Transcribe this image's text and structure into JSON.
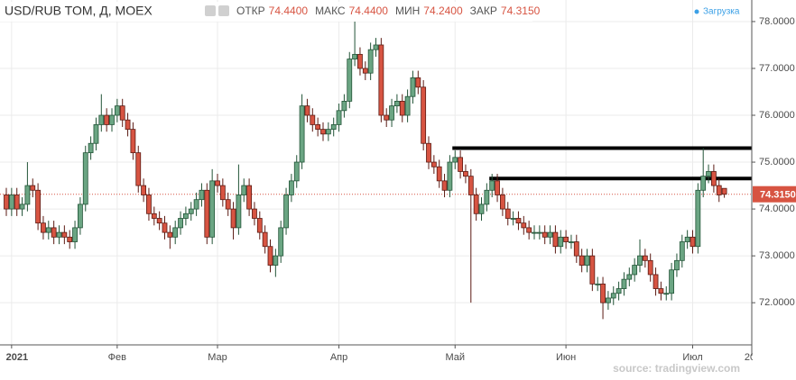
{
  "chart_data": {
    "type": "candlestick",
    "header": {
      "symbol": "USD/RUB TOM, Д, MOEX",
      "fields": [
        {
          "label": "ОТКР",
          "value": "74.4400"
        },
        {
          "label": "МАКС",
          "value": "74.4400"
        },
        {
          "label": "МИН",
          "value": "74.2400"
        },
        {
          "label": "ЗАКР",
          "value": "74.3150"
        }
      ]
    },
    "status": "Загрузка",
    "source": "source: tradingview.com",
    "categories": [
      null,
      "2021",
      null,
      null,
      null,
      null,
      null,
      null,
      null,
      null,
      null,
      null,
      null,
      null,
      null,
      null,
      null,
      null,
      null,
      null,
      null,
      "Фев",
      null,
      null,
      null,
      null,
      null,
      null,
      null,
      null,
      null,
      null,
      null,
      null,
      null,
      null,
      null,
      null,
      null,
      null,
      "Мар",
      null,
      null,
      null,
      null,
      null,
      null,
      null,
      null,
      null,
      null,
      null,
      null,
      null,
      null,
      null,
      null,
      null,
      null,
      null,
      null,
      null,
      null,
      "Апр",
      null,
      null,
      null,
      null,
      null,
      null,
      null,
      null,
      null,
      null,
      null,
      null,
      null,
      null,
      null,
      null,
      null,
      null,
      null,
      null,
      null,
      "Май",
      null,
      null,
      null,
      null,
      null,
      null,
      null,
      null,
      null,
      null,
      null,
      null,
      null,
      null,
      null,
      null,
      null,
      null,
      null,
      null,
      "Июн",
      null,
      null,
      null,
      null,
      null,
      null,
      null,
      null,
      null,
      null,
      null,
      null,
      null,
      null,
      null,
      null,
      null,
      null,
      null,
      null,
      null,
      null,
      null,
      "Июл",
      null,
      null,
      null,
      null,
      null,
      null
    ],
    "axis_cut_label": "20",
    "open": [
      74.3,
      74.0,
      74.3,
      74.0,
      74.1,
      74.5,
      74.4,
      73.7,
      73.5,
      73.6,
      73.4,
      73.5,
      73.4,
      73.3,
      73.6,
      74.1,
      75.2,
      75.4,
      75.8,
      76.0,
      75.8,
      76.0,
      76.2,
      75.9,
      75.7,
      75.2,
      74.5,
      74.3,
      73.9,
      73.8,
      73.7,
      73.5,
      73.4,
      73.6,
      73.8,
      73.9,
      74.0,
      74.2,
      74.4,
      73.4,
      74.6,
      74.5,
      74.2,
      74.0,
      73.6,
      74.3,
      74.5,
      74.0,
      73.8,
      73.5,
      73.2,
      72.8,
      73.0,
      73.6,
      74.3,
      74.6,
      75.0,
      76.2,
      76.0,
      75.8,
      75.7,
      75.6,
      75.7,
      75.8,
      76.1,
      76.3,
      77.2,
      77.3,
      77.0,
      76.9,
      77.4,
      77.5,
      76.0,
      75.9,
      76.2,
      76.3,
      76.0,
      76.4,
      76.8,
      76.6,
      75.4,
      75.0,
      74.9,
      74.6,
      74.4,
      75.0,
      75.1,
      74.8,
      74.7,
      74.3,
      73.9,
      74.1,
      74.4,
      74.6,
      74.3,
      74.0,
      73.8,
      73.8,
      73.7,
      73.6,
      73.5,
      73.5,
      73.5,
      73.4,
      73.5,
      73.2,
      73.4,
      73.3,
      73.3,
      73.0,
      72.8,
      73.0,
      72.4,
      72.4,
      72.0,
      72.1,
      72.2,
      72.3,
      72.5,
      72.6,
      72.8,
      73.0,
      72.9,
      72.6,
      72.3,
      72.2,
      72.2,
      72.7,
      72.9,
      73.3,
      73.4,
      73.2,
      74.4,
      74.7,
      74.8,
      74.5,
      74.44
    ],
    "high": [
      74.45,
      74.45,
      74.45,
      74.25,
      75.0,
      74.65,
      74.55,
      73.85,
      73.75,
      73.75,
      73.65,
      73.65,
      73.55,
      73.75,
      74.25,
      75.35,
      75.55,
      75.95,
      76.45,
      76.15,
      76.15,
      76.35,
      76.35,
      76.05,
      75.85,
      75.35,
      74.65,
      74.45,
      74.05,
      73.95,
      73.85,
      73.65,
      73.75,
      73.95,
      74.05,
      74.15,
      74.35,
      74.55,
      74.55,
      74.85,
      74.75,
      74.65,
      74.35,
      74.15,
      74.95,
      74.65,
      74.65,
      74.15,
      73.95,
      73.65,
      73.35,
      73.15,
      73.75,
      74.45,
      74.75,
      75.15,
      76.45,
      76.35,
      76.15,
      75.95,
      75.85,
      75.85,
      75.95,
      76.25,
      76.45,
      77.35,
      78.0,
      77.45,
      77.15,
      77.55,
      77.65,
      77.65,
      76.15,
      76.35,
      76.45,
      76.45,
      76.55,
      76.95,
      76.95,
      76.75,
      75.55,
      75.15,
      75.05,
      74.75,
      75.15,
      75.25,
      75.25,
      74.95,
      74.85,
      74.45,
      74.25,
      74.55,
      74.75,
      74.75,
      74.45,
      74.15,
      73.95,
      73.95,
      73.85,
      73.75,
      73.65,
      73.65,
      73.65,
      73.65,
      73.65,
      73.55,
      73.55,
      73.45,
      73.45,
      73.15,
      73.15,
      73.15,
      72.55,
      72.55,
      72.25,
      72.35,
      72.45,
      72.65,
      72.75,
      72.95,
      73.35,
      73.15,
      73.05,
      72.75,
      72.45,
      72.35,
      72.85,
      73.05,
      73.45,
      73.55,
      73.55,
      74.55,
      75.3,
      74.95,
      74.95,
      74.65,
      74.44
    ],
    "low": [
      73.85,
      73.85,
      73.85,
      73.85,
      73.95,
      74.25,
      73.55,
      73.35,
      73.35,
      73.25,
      73.25,
      73.25,
      73.15,
      73.15,
      73.45,
      73.95,
      75.05,
      75.25,
      75.65,
      75.65,
      75.65,
      75.85,
      75.75,
      75.55,
      75.05,
      74.35,
      74.15,
      73.75,
      73.65,
      73.55,
      73.35,
      73.15,
      73.25,
      73.45,
      73.65,
      73.75,
      73.85,
      74.05,
      73.25,
      73.25,
      74.35,
      74.05,
      73.85,
      73.35,
      73.45,
      74.15,
      73.85,
      73.65,
      73.35,
      73.05,
      72.65,
      72.55,
      72.85,
      73.45,
      74.15,
      74.45,
      74.85,
      75.85,
      75.65,
      75.55,
      75.45,
      75.45,
      75.55,
      75.65,
      75.95,
      76.15,
      77.05,
      76.85,
      76.75,
      76.75,
      77.25,
      75.85,
      75.75,
      75.75,
      76.05,
      75.85,
      75.85,
      76.25,
      76.45,
      75.25,
      74.85,
      74.75,
      74.45,
      74.25,
      74.25,
      74.85,
      74.65,
      74.55,
      72.0,
      73.75,
      73.75,
      73.95,
      74.25,
      74.15,
      73.85,
      73.65,
      73.65,
      73.55,
      73.45,
      73.35,
      73.35,
      73.35,
      73.25,
      73.25,
      73.05,
      73.05,
      73.15,
      73.15,
      72.85,
      72.65,
      72.65,
      72.25,
      72.25,
      71.65,
      71.85,
      71.95,
      72.05,
      72.15,
      72.35,
      72.45,
      72.65,
      72.75,
      72.45,
      72.15,
      72.05,
      72.05,
      72.05,
      72.55,
      72.75,
      73.15,
      73.05,
      73.05,
      74.25,
      74.55,
      74.35,
      74.15,
      74.24
    ],
    "close": [
      74.0,
      74.3,
      74.0,
      74.1,
      74.5,
      74.4,
      73.7,
      73.5,
      73.6,
      73.4,
      73.5,
      73.4,
      73.3,
      73.6,
      74.1,
      75.2,
      75.4,
      75.8,
      76.0,
      75.8,
      76.0,
      76.2,
      75.9,
      75.7,
      75.2,
      74.5,
      74.3,
      73.9,
      73.8,
      73.7,
      73.5,
      73.4,
      73.6,
      73.8,
      73.9,
      74.0,
      74.2,
      74.4,
      73.4,
      74.6,
      74.5,
      74.2,
      74.0,
      73.6,
      74.3,
      74.5,
      74.0,
      73.8,
      73.5,
      73.2,
      72.8,
      73.0,
      73.6,
      74.3,
      74.6,
      75.0,
      76.2,
      76.0,
      75.8,
      75.7,
      75.6,
      75.7,
      75.8,
      76.1,
      76.3,
      77.2,
      77.3,
      77.0,
      76.9,
      77.4,
      77.5,
      76.0,
      75.9,
      76.2,
      76.3,
      76.0,
      76.4,
      76.8,
      76.6,
      75.4,
      75.0,
      74.9,
      74.6,
      74.4,
      75.0,
      75.1,
      74.8,
      74.7,
      74.3,
      73.9,
      74.1,
      74.4,
      74.6,
      74.3,
      74.0,
      73.8,
      73.8,
      73.7,
      73.6,
      73.5,
      73.5,
      73.5,
      73.4,
      73.5,
      73.2,
      73.4,
      73.3,
      73.3,
      73.0,
      72.8,
      73.0,
      72.4,
      72.4,
      72.0,
      72.1,
      72.2,
      72.3,
      72.5,
      72.6,
      72.8,
      73.0,
      72.9,
      72.6,
      72.3,
      72.2,
      72.2,
      72.7,
      72.9,
      73.3,
      73.4,
      73.2,
      74.4,
      74.7,
      74.8,
      74.5,
      74.3,
      74.315
    ],
    "last_label": "74.3150",
    "up_color": "#6ba583",
    "down_color": "#d75442",
    "levels": [
      75.3,
      74.65
    ],
    "ylim": [
      71.1,
      78.46
    ],
    "yticks": [
      {
        "value": 72,
        "label": "72.0000"
      },
      {
        "value": 73,
        "label": "73.0000"
      },
      {
        "value": 74,
        "label": "74.0000"
      },
      {
        "value": 75,
        "label": "75.0000"
      },
      {
        "value": 76,
        "label": "76.0000"
      },
      {
        "value": 77,
        "label": "77.0000"
      },
      {
        "value": 78,
        "label": "78.0000"
      }
    ],
    "grid": true
  }
}
